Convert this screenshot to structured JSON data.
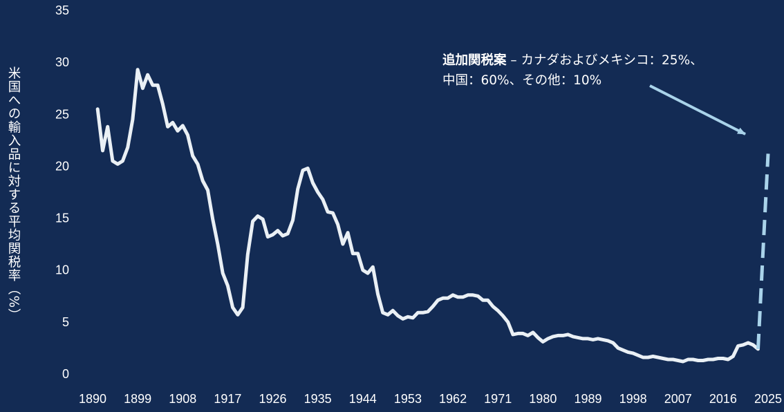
{
  "chart_data": {
    "type": "line",
    "ylabel": "米国への輸入品に対する平均関税率（%）",
    "xlabel": "",
    "ylim": [
      0,
      35
    ],
    "xlim": [
      1890,
      2025
    ],
    "yticks": [
      0,
      5,
      10,
      15,
      20,
      25,
      30,
      35
    ],
    "xticks": [
      1890,
      1899,
      1908,
      1917,
      1926,
      1935,
      1944,
      1953,
      1962,
      1971,
      1980,
      1989,
      1998,
      2007,
      2016,
      2025
    ],
    "grid": false,
    "series": [
      {
        "style": "solid",
        "x": [
          1891,
          1892,
          1893,
          1894,
          1895,
          1896,
          1897,
          1898,
          1899,
          1900,
          1901,
          1902,
          1903,
          1904,
          1905,
          1906,
          1907,
          1908,
          1909,
          1910,
          1911,
          1912,
          1913,
          1914,
          1915,
          1916,
          1917,
          1918,
          1919,
          1920,
          1921,
          1922,
          1923,
          1924,
          1925,
          1926,
          1927,
          1928,
          1929,
          1930,
          1931,
          1932,
          1933,
          1934,
          1935,
          1936,
          1937,
          1938,
          1939,
          1940,
          1941,
          1942,
          1943,
          1944,
          1945,
          1946,
          1947,
          1948,
          1949,
          1950,
          1951,
          1952,
          1953,
          1954,
          1955,
          1956,
          1957,
          1958,
          1959,
          1960,
          1961,
          1962,
          1963,
          1964,
          1965,
          1966,
          1967,
          1968,
          1969,
          1970,
          1971,
          1972,
          1973,
          1974,
          1975,
          1976,
          1977,
          1978,
          1979,
          1980,
          1981,
          1982,
          1983,
          1984,
          1985,
          1986,
          1987,
          1988,
          1989,
          1990,
          1991,
          1992,
          1993,
          1994,
          1995,
          1996,
          1997,
          1998,
          1999,
          2000,
          2001,
          2002,
          2003,
          2004,
          2005,
          2006,
          2007,
          2008,
          2009,
          2010,
          2011,
          2012,
          2013,
          2014,
          2015,
          2016,
          2017,
          2018,
          2019,
          2020,
          2021,
          2022,
          2023
        ],
        "values": [
          25.5,
          21.5,
          23.8,
          20.5,
          20.2,
          20.5,
          21.8,
          24.5,
          29.3,
          27.5,
          28.8,
          27.8,
          27.8,
          26.0,
          23.8,
          24.2,
          23.4,
          23.9,
          23.0,
          21.0,
          20.2,
          18.6,
          17.7,
          14.9,
          12.5,
          9.7,
          8.5,
          6.4,
          5.7,
          6.4,
          11.5,
          14.7,
          15.2,
          14.9,
          13.2,
          13.4,
          13.8,
          13.3,
          13.5,
          14.8,
          17.8,
          19.6,
          19.8,
          18.4,
          17.5,
          16.8,
          15.6,
          15.5,
          14.4,
          12.5,
          13.6,
          11.6,
          11.6,
          10.0,
          9.7,
          10.3,
          7.7,
          5.9,
          5.7,
          6.1,
          5.6,
          5.3,
          5.5,
          5.4,
          5.9,
          5.9,
          6.0,
          6.5,
          7.1,
          7.3,
          7.3,
          7.6,
          7.4,
          7.4,
          7.6,
          7.6,
          7.5,
          7.1,
          7.1,
          6.5,
          6.1,
          5.6,
          5.0,
          3.8,
          3.9,
          3.9,
          3.7,
          4.0,
          3.5,
          3.1,
          3.4,
          3.6,
          3.7,
          3.7,
          3.8,
          3.6,
          3.5,
          3.4,
          3.4,
          3.3,
          3.4,
          3.3,
          3.2,
          3.0,
          2.5,
          2.3,
          2.1,
          2.0,
          1.8,
          1.6,
          1.6,
          1.7,
          1.6,
          1.5,
          1.4,
          1.4,
          1.3,
          1.2,
          1.4,
          1.4,
          1.3,
          1.3,
          1.4,
          1.4,
          1.5,
          1.5,
          1.4,
          1.7,
          2.7,
          2.8,
          3.0,
          2.8,
          2.4
        ]
      },
      {
        "style": "dashed",
        "x": [
          2023,
          2024,
          2025
        ],
        "values": [
          2.4,
          12.0,
          21.2
        ]
      }
    ],
    "annotation": {
      "bold": "追加関税案",
      "line1": " – カナダおよびメキシコ：25%、",
      "line2": "中国：60%、その他：10%"
    }
  }
}
